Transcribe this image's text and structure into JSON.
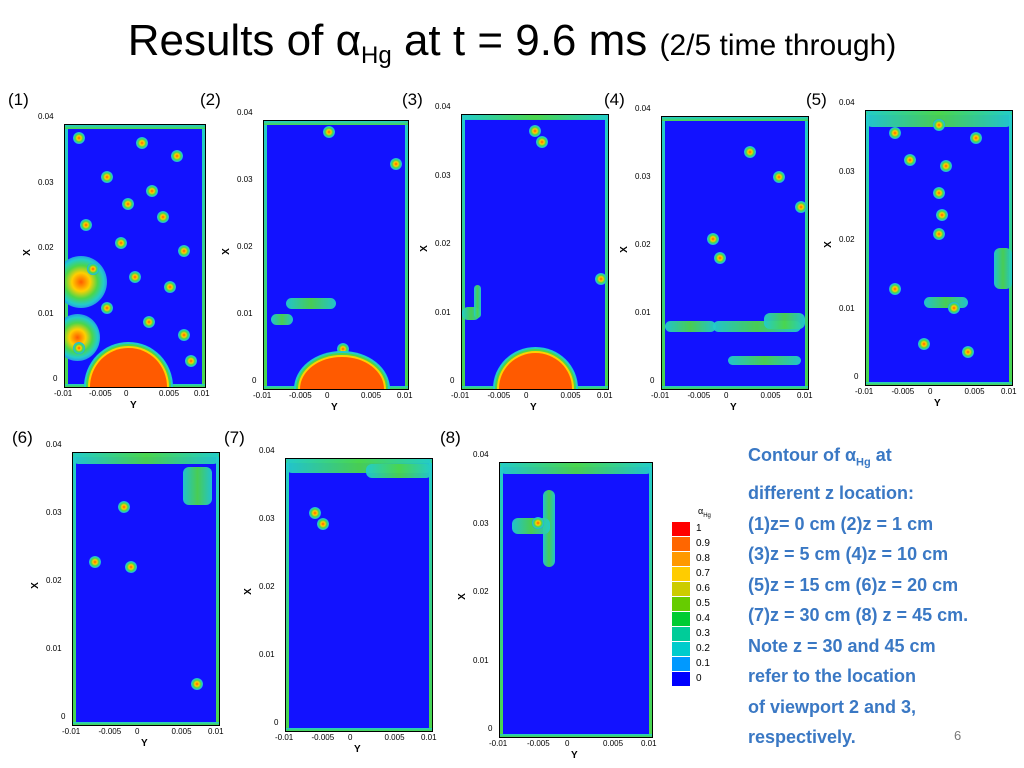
{
  "slide": {
    "title_main": "Results of α",
    "title_sub": "Hg",
    "title_rest": "  at t = 9.6 ms ",
    "title_paren": "(2/5 time through)",
    "page_number": "6"
  },
  "axes": {
    "x_axis_label": "Y",
    "y_axis_label": "X",
    "x_ticks": [
      "-0.01",
      "-0.005",
      "0",
      "0.005",
      "0.01"
    ],
    "y_ticks": [
      "0",
      "0.01",
      "0.02",
      "0.03",
      "0.04"
    ]
  },
  "panels": [
    {
      "label": "(1)",
      "z": "z= 0 cm"
    },
    {
      "label": "(2)",
      "z": "z = 1 cm"
    },
    {
      "label": "(3)",
      "z": "z = 5 cm"
    },
    {
      "label": "(4)",
      "z": "z = 10 cm"
    },
    {
      "label": "(5)",
      "z": "z = 15 cm"
    },
    {
      "label": "(6)",
      "z": "z = 20 cm"
    },
    {
      "label": "(7)",
      "z": "z = 30 cm"
    },
    {
      "label": "(8)",
      "z": "z = 45 cm"
    }
  ],
  "legend": {
    "title": "α",
    "title_sub": "Hg",
    "levels": [
      "1",
      "0.9",
      "0.8",
      "0.7",
      "0.6",
      "0.5",
      "0.4",
      "0.3",
      "0.2",
      "0.1",
      "0"
    ],
    "colors": [
      "#ff0000",
      "#ff6600",
      "#ff9900",
      "#ffcc00",
      "#cccc00",
      "#66cc00",
      "#00cc33",
      "#00cc99",
      "#00cccc",
      "#0099ff",
      "#0000ff"
    ]
  },
  "note": {
    "lines": [
      "Contour of αHg at",
      "different z location:",
      "(1)z= 0 cm (2)z = 1 cm",
      "(3)z = 5 cm (4)z = 10 cm",
      "(5)z = 15 cm (6)z = 20 cm",
      " (7)z = 30 cm (8) z = 45 cm.",
      "Note z = 30 and 45 cm",
      "refer to the  location",
      "of viewport 2 and 3,",
      "respectively."
    ]
  },
  "colors": {
    "field_blue": "#1212ff",
    "note_blue": "#3a78c4",
    "mercury_orange": "#ff5a00"
  }
}
